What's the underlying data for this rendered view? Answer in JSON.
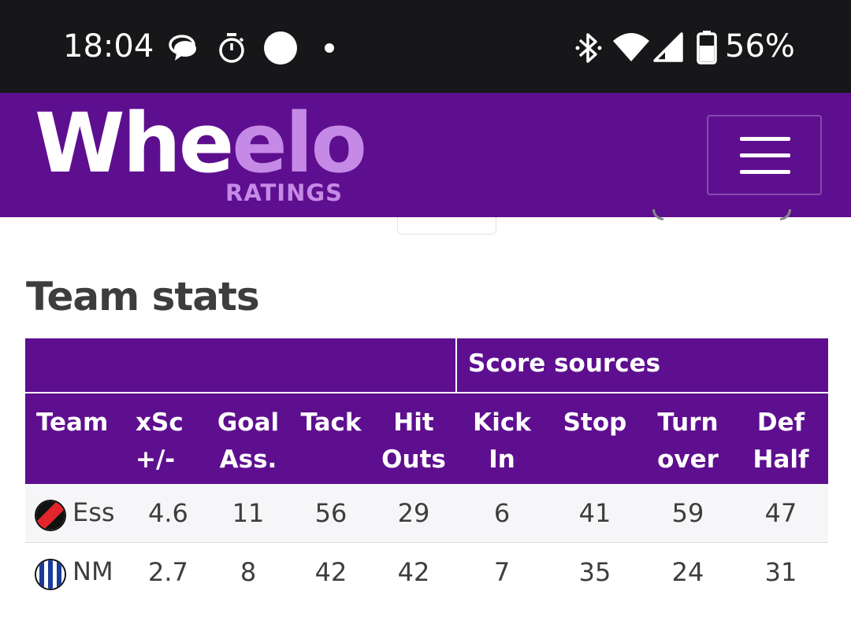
{
  "status_bar": {
    "time": "18:04",
    "battery": "56%",
    "icons": [
      "chat-bubble-icon",
      "stopwatch-icon",
      "circle-icon",
      "dot-icon",
      "bluetooth-icon",
      "wifi-icon",
      "signal-icon",
      "battery-icon"
    ]
  },
  "header": {
    "logo_part1": "Whe",
    "logo_part2": "elo",
    "logo_sub": "RATINGS",
    "menu_icon": "hamburger-menu-icon",
    "colors": {
      "background": "#5e0f8f",
      "accent": "#c48ae6"
    }
  },
  "section": {
    "title": "Team stats"
  },
  "table": {
    "group_header": "Score sources",
    "columns": [
      {
        "line1": "Team",
        "line2": ""
      },
      {
        "line1": "xSc",
        "line2": "+/-"
      },
      {
        "line1": "Goal",
        "line2": "Ass."
      },
      {
        "line1": "Tack",
        "line2": ""
      },
      {
        "line1": "Hit",
        "line2": "Outs"
      },
      {
        "line1": "Kick",
        "line2": "In"
      },
      {
        "line1": "Stop",
        "line2": ""
      },
      {
        "line1": "Turn",
        "line2": "over"
      },
      {
        "line1": "Def",
        "line2": "Half"
      }
    ],
    "rows": [
      {
        "team": "Ess",
        "logo": "essendon-logo-icon",
        "values": [
          "4.6",
          "11",
          "56",
          "29",
          "6",
          "41",
          "59",
          "47"
        ]
      },
      {
        "team": "NM",
        "logo": "north-melbourne-logo-icon",
        "values": [
          "2.7",
          "8",
          "42",
          "42",
          "7",
          "35",
          "24",
          "31"
        ]
      }
    ]
  }
}
